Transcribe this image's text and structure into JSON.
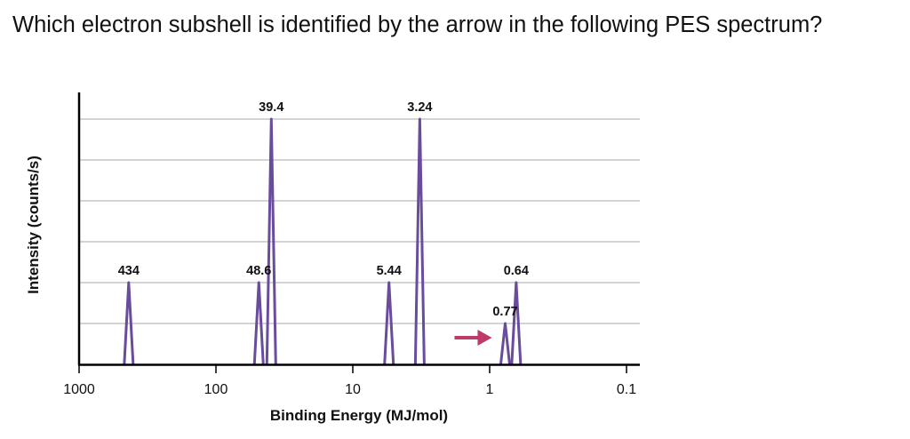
{
  "question": "Which electron subshell is identified by the arrow in the following PES spectrum?",
  "chart_data": {
    "type": "line",
    "xlabel": "Binding Energy (MJ/mol)",
    "ylabel": "Intensity (counts/s)",
    "x_scale": "log",
    "x_reversed": true,
    "xlim": [
      1000,
      0.1
    ],
    "x_ticks": [
      1000,
      100,
      10,
      1,
      0.1
    ],
    "x_tick_labels": [
      "1000",
      "100",
      "10",
      "1",
      "0.1"
    ],
    "ylim": [
      0,
      6
    ],
    "grid": true,
    "peaks": [
      {
        "x": 434,
        "y": 2,
        "label": "434"
      },
      {
        "x": 48.6,
        "y": 2,
        "label": "48.6"
      },
      {
        "x": 39.4,
        "y": 6,
        "label": "39.4"
      },
      {
        "x": 5.44,
        "y": 2,
        "label": "5.44"
      },
      {
        "x": 3.24,
        "y": 6,
        "label": "3.24"
      },
      {
        "x": 0.77,
        "y": 1,
        "label": "0.77"
      },
      {
        "x": 0.64,
        "y": 2,
        "label": "0.64"
      }
    ],
    "arrow_target": "0.77",
    "line_color": "#6a4c9c",
    "arrow_color": "#c0396b",
    "grid_color": "#a9a9a9"
  }
}
